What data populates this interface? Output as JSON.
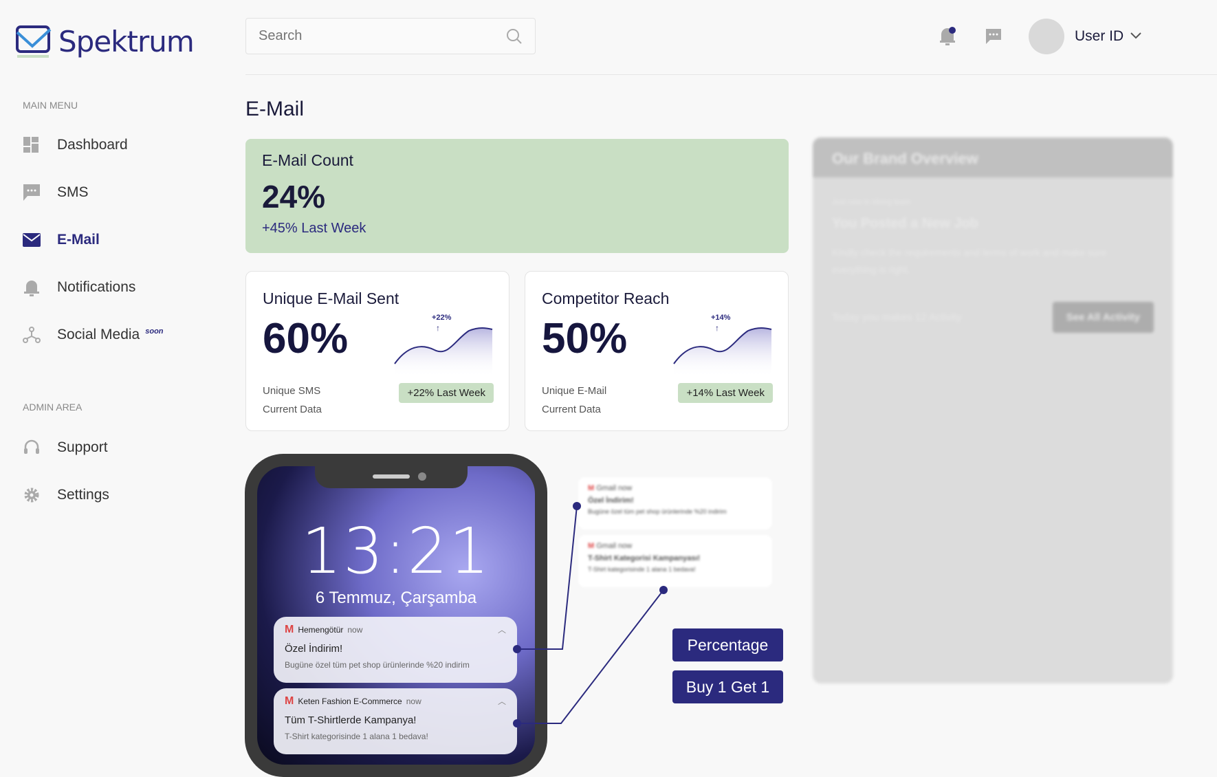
{
  "brand": {
    "name": "Spektrum"
  },
  "search": {
    "placeholder": "Search"
  },
  "header": {
    "user": "User ID",
    "icons": [
      "bell-icon",
      "chat-icon",
      "avatar",
      "chevron-down-icon"
    ],
    "notification_dot_color": "#2b2a7e"
  },
  "sidebar": {
    "main_label": "MAIN MENU",
    "items": [
      {
        "label": "Dashboard",
        "icon": "grid-icon"
      },
      {
        "label": "SMS",
        "icon": "chat-icon"
      },
      {
        "label": "E-Mail",
        "icon": "mail-icon",
        "active": true
      },
      {
        "label": "Notifications",
        "icon": "bell-icon"
      },
      {
        "label": "Social Media",
        "icon": "network-icon",
        "badge": "soon"
      }
    ],
    "admin_label": "ADMIN AREA",
    "admin_items": [
      {
        "label": "Support",
        "icon": "headset-icon"
      },
      {
        "label": "Settings",
        "icon": "gear-icon"
      }
    ]
  },
  "page": {
    "title": "E-Mail"
  },
  "email_count": {
    "title": "E-Mail Count",
    "value": "24%",
    "change": "+45% Last Week"
  },
  "cards": [
    {
      "title": "Unique E-Mail Sent",
      "value": "60%",
      "spark_label": "+22%",
      "sub1": "Unique SMS",
      "sub2": "Current Data",
      "badge": "+22% Last Week"
    },
    {
      "title": "Competitor Reach",
      "value": "50%",
      "spark_label": "+14%",
      "sub1": "Unique E-Mail",
      "sub2": "Current Data",
      "badge": "+14% Last Week"
    }
  ],
  "overview": {
    "title": "Our Brand Overview",
    "kicker": "Just now in Hiring team",
    "headline": "You Posted a New Job",
    "body": "Kindly check the requirements and terms of work and make sure everything is right.",
    "footer": "Today you makes 12 Activity",
    "button": "See All Activity"
  },
  "phone": {
    "time": "13:21",
    "date": "6 Temmuz, Çarşamba",
    "notifications": [
      {
        "app": "Hemengötür",
        "when": "now",
        "title": "Özel İndirim!",
        "body": "Bugüne özel tüm pet shop ürünlerinde %20 indirim"
      },
      {
        "app": "Keten Fashion E-Commerce",
        "when": "now",
        "title": "Tüm T-Shirtlerde Kampanya!",
        "body": "T-Shirt kategorisinde 1 alana 1 bedava!"
      }
    ]
  },
  "gmail_previews": [
    {
      "app": "Gmail",
      "when": "now",
      "title": "Özel İndirim!",
      "body": "Bugüne özel tüm pet shop ürünlerinde %20 indirim"
    },
    {
      "app": "Gmail",
      "when": "now",
      "title": "T-Shirt Kategorisi Kampanyası!",
      "body": "T-Shirt kategorisinde 1 alana 1 bedava!"
    }
  ],
  "actions": {
    "percentage": "Percentage",
    "bogo": "Buy 1 Get 1"
  },
  "colors": {
    "brand": "#2b2a7e",
    "green": "#c9dfc4"
  }
}
